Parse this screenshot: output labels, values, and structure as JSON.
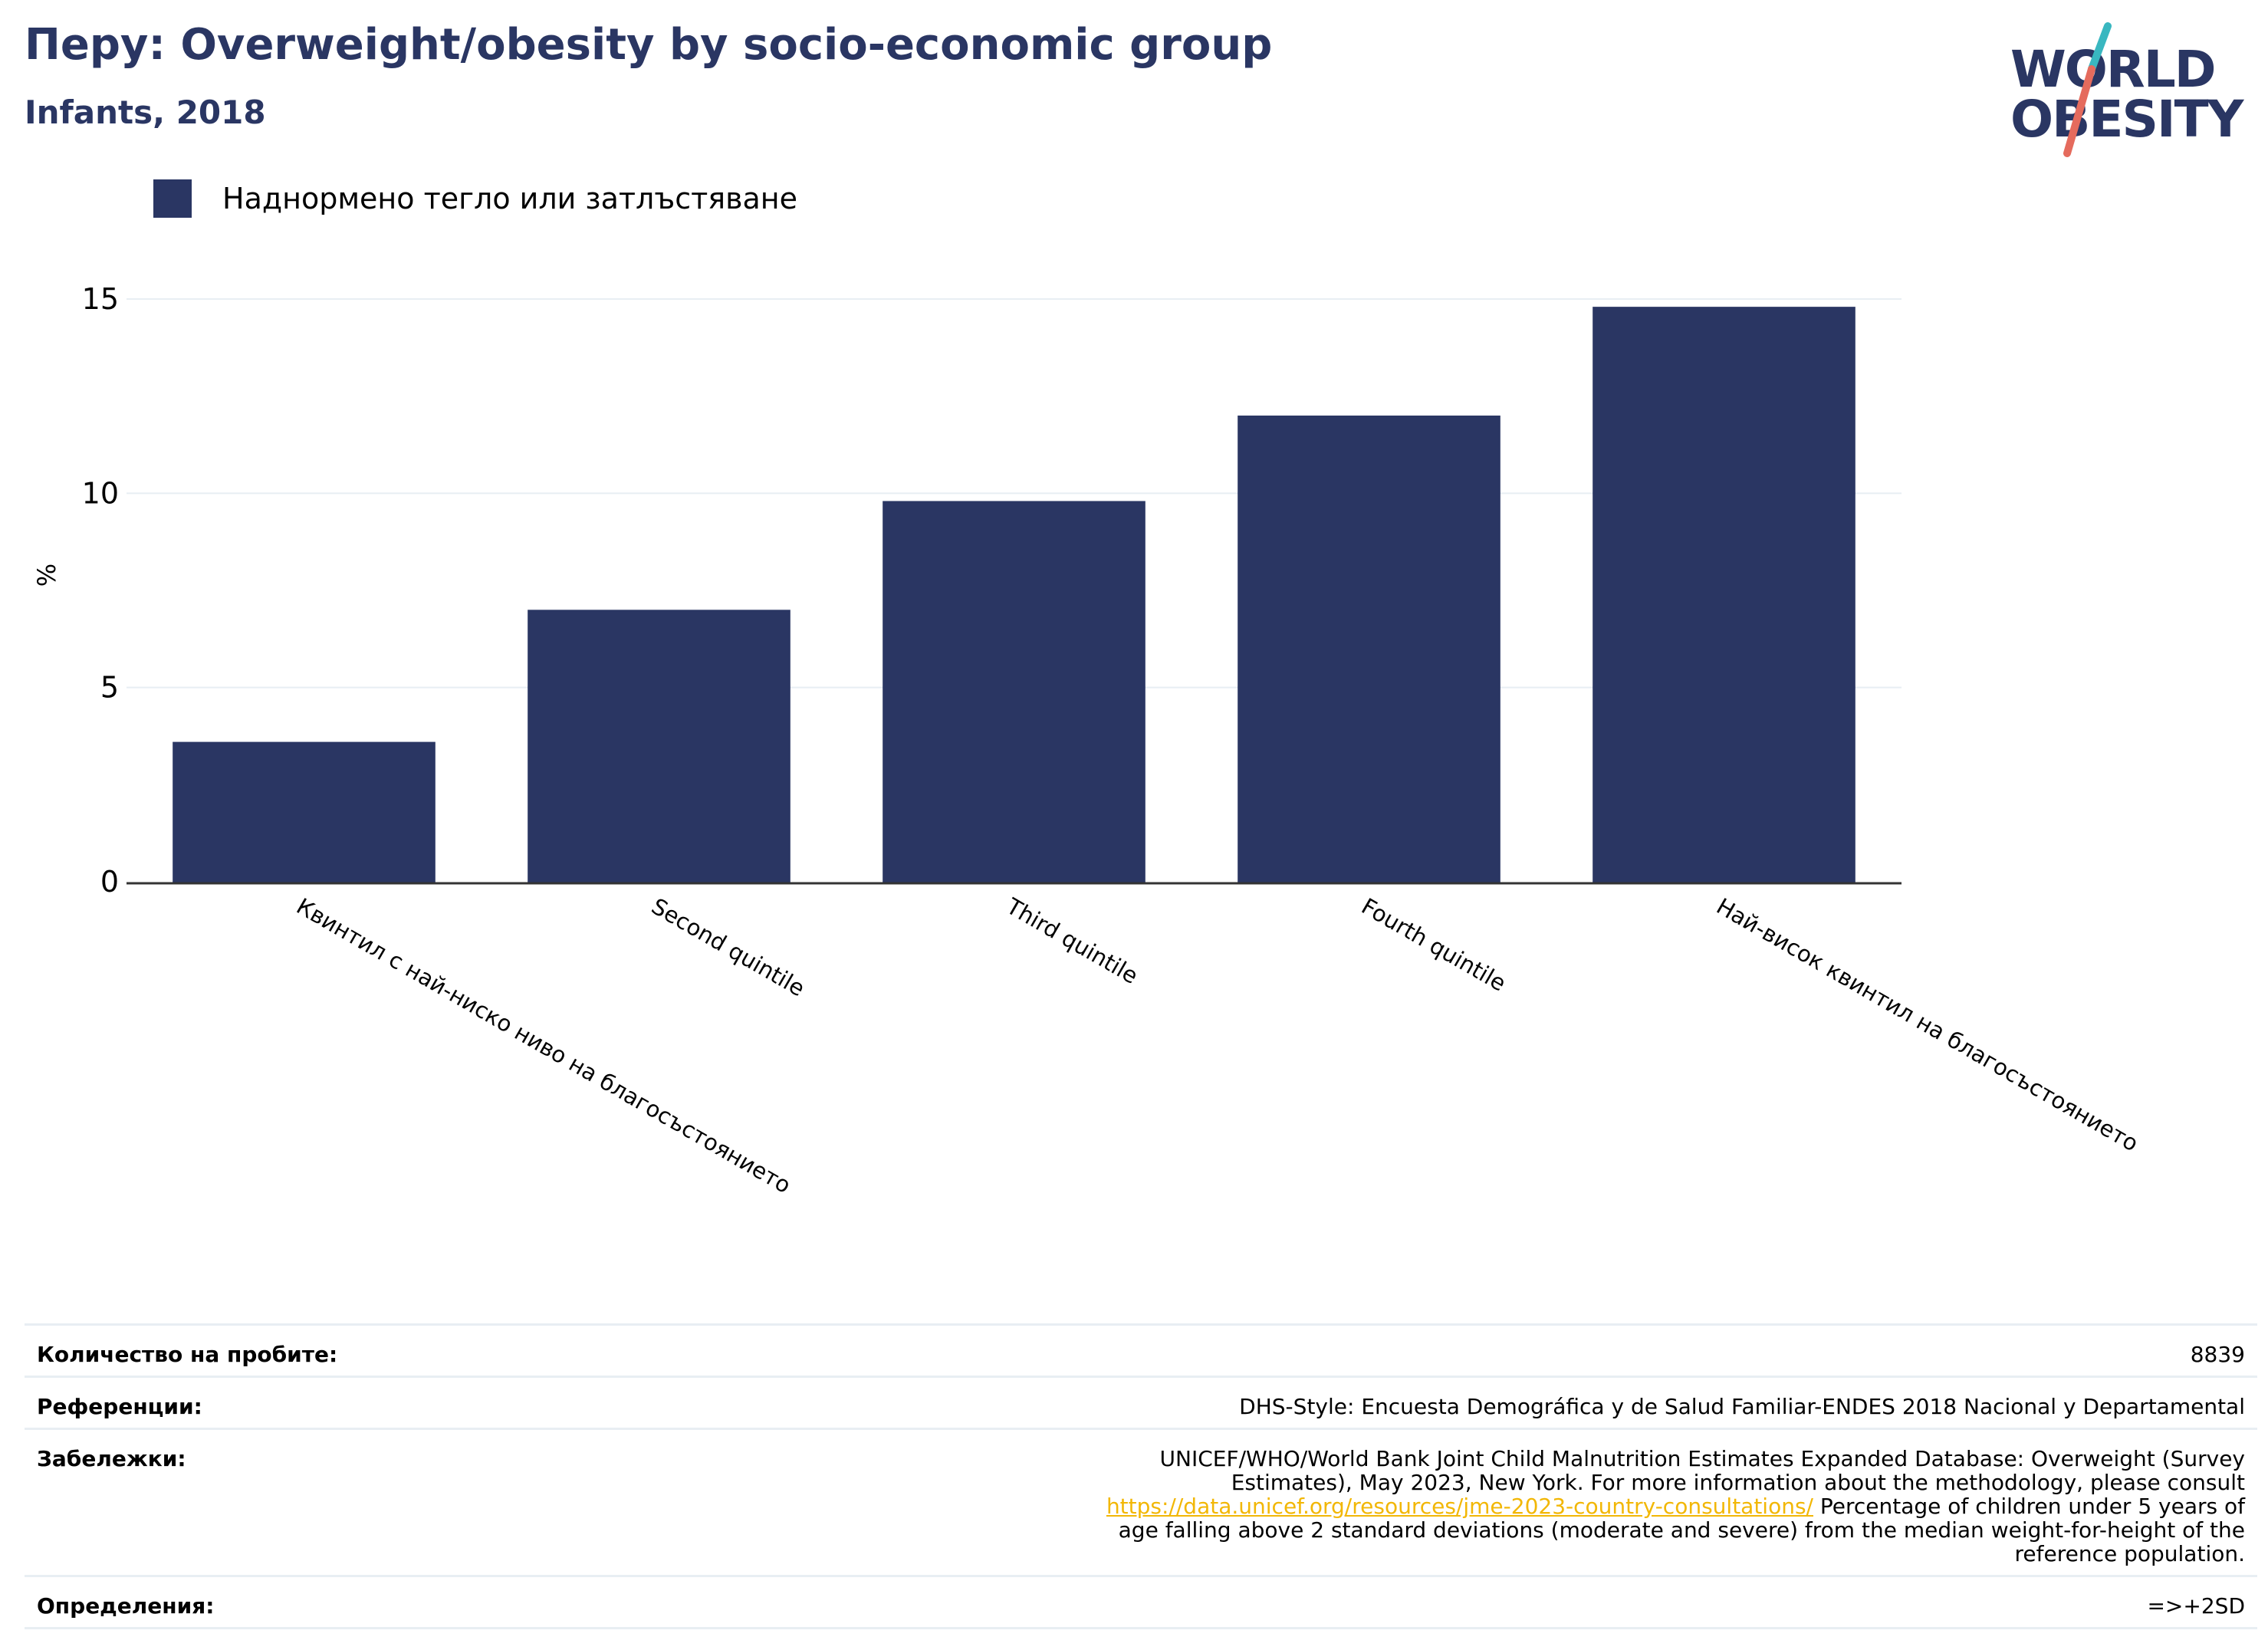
{
  "header": {
    "title": "Перу: Overweight/obesity by socio-economic group",
    "subtitle": "Infants, 2018"
  },
  "logo": {
    "line1": "WORLD",
    "line2": "OBESITY",
    "colors": {
      "navy": "#2a3663",
      "teal": "#39b7c0",
      "coral": "#e56b5d"
    }
  },
  "legend": {
    "label": "Наднормено тегло или затлъстяване",
    "color": "#2a3663"
  },
  "chart_data": {
    "type": "bar",
    "title": "Перу: Overweight/obesity by socio-economic group",
    "subtitle": "Infants, 2018",
    "ylabel": "%",
    "xlabel": "",
    "categories": [
      "Квинтил с най-ниско ниво на благосъстоянието",
      "Second quintile",
      "Third quintile",
      "Fourth quintile",
      "Най-висок квинтил на благосъстоянието"
    ],
    "series": [
      {
        "name": "Наднормено тегло или затлъстяване",
        "values": [
          3.6,
          7.0,
          9.8,
          12.0,
          14.8
        ],
        "color": "#2a3663"
      }
    ],
    "ylim": [
      0,
      15
    ],
    "yticks": [
      0,
      5,
      10,
      15
    ],
    "grid": true,
    "legend_position": "top-left"
  },
  "info": {
    "rows": [
      {
        "label": "Количество на пробите:",
        "value": "8839"
      },
      {
        "label": "Референции:",
        "value": "DHS-Style: Encuesta Demográfica y de Salud Familiar-ENDES 2018 Nacional y Departamental"
      },
      {
        "label": "Забележки:",
        "value_before": "UNICEF/WHO/World Bank Joint Child Malnutrition Estimates Expanded Database: Overweight (Survey Estimates), May 2023, New York. For more information about the methodology, please consult ",
        "link": "https://data.unicef.org/resources/jme-2023-country-consultations/",
        "value_after": " Percentage of children under 5 years of age falling above 2 standard deviations (moderate and severe) from the median weight-for-height of the reference population."
      },
      {
        "label": "Определения:",
        "value": "=>+2SD"
      }
    ]
  }
}
